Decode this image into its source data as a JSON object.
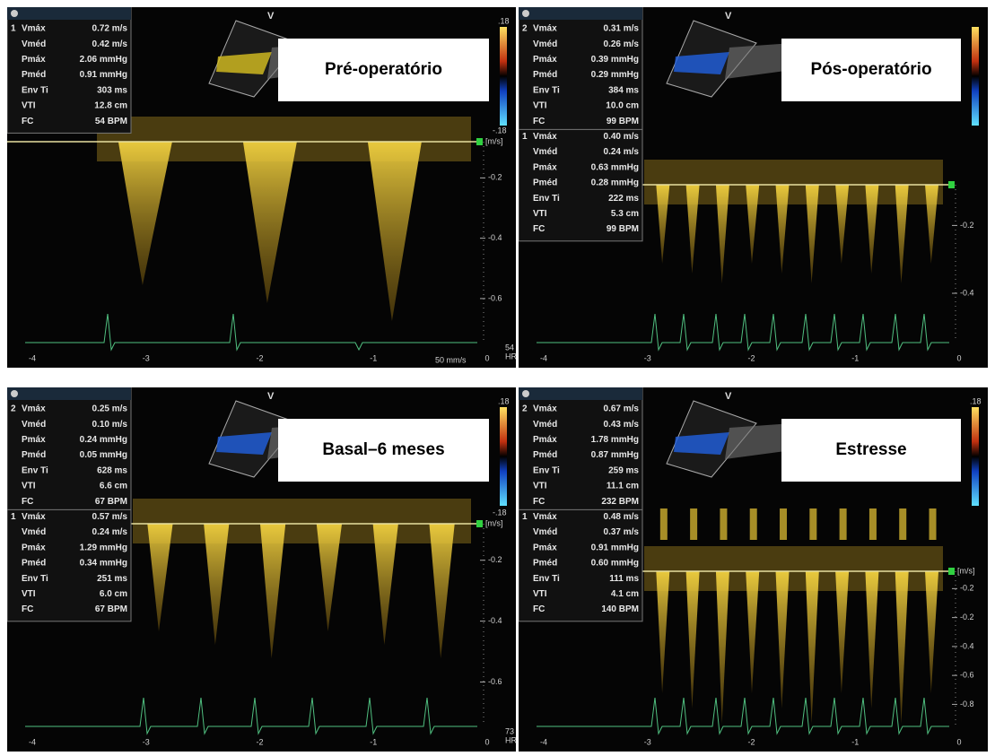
{
  "panels": [
    {
      "title": "Pré-operatório",
      "marker": "V",
      "groups": [
        {
          "number": "1",
          "rows": [
            {
              "label": "Vmáx",
              "value": "0.72 m/s"
            },
            {
              "label": "Vméd",
              "value": "0.42 m/s"
            },
            {
              "label": "Pmáx",
              "value": "2.06 mmHg"
            },
            {
              "label": "Pméd",
              "value": "0.91 mmHg"
            },
            {
              "label": "Env Ti",
              "value": "303 ms"
            },
            {
              "label": "VTI",
              "value": "12.8 cm"
            },
            {
              "label": "FC",
              "value": "54 BPM"
            }
          ]
        }
      ],
      "scale_top": ".18",
      "scale_bottom": "-.18",
      "unit": "[m/s]",
      "y_labels": [
        "-0.2",
        "-0.4",
        "-0.6"
      ],
      "x_labels": [
        "-4",
        "-3",
        "-2",
        "-1",
        "0"
      ],
      "hr": "54",
      "hr_unit": "HR",
      "sweep": "50 mm/s"
    },
    {
      "title": "Pós-operatório",
      "marker": "V",
      "groups": [
        {
          "number": "2",
          "rows": [
            {
              "label": "Vmáx",
              "value": "0.31 m/s"
            },
            {
              "label": "Vméd",
              "value": "0.26 m/s"
            },
            {
              "label": "Pmáx",
              "value": "0.39 mmHg"
            },
            {
              "label": "Pméd",
              "value": "0.29 mmHg"
            },
            {
              "label": "Env Ti",
              "value": "384 ms"
            },
            {
              "label": "VTI",
              "value": "10.0 cm"
            },
            {
              "label": "FC",
              "value": "99 BPM"
            }
          ]
        },
        {
          "number": "1",
          "rows": [
            {
              "label": "Vmáx",
              "value": "0.40 m/s"
            },
            {
              "label": "Vméd",
              "value": "0.24 m/s"
            },
            {
              "label": "Pmáx",
              "value": "0.63 mmHg"
            },
            {
              "label": "Pméd",
              "value": "0.28 mmHg"
            },
            {
              "label": "Env Ti",
              "value": "222 ms"
            },
            {
              "label": "VTI",
              "value": "5.3 cm"
            },
            {
              "label": "FC",
              "value": "99 BPM"
            }
          ]
        }
      ],
      "y_labels": [
        "-0.2",
        "-0.4"
      ],
      "x_labels": [
        "-4",
        "-3",
        "-2",
        "-1",
        "0"
      ]
    },
    {
      "title": "Basal–6 meses",
      "marker": "V",
      "groups": [
        {
          "number": "2",
          "rows": [
            {
              "label": "Vmáx",
              "value": "0.25 m/s"
            },
            {
              "label": "Vméd",
              "value": "0.10 m/s"
            },
            {
              "label": "Pmáx",
              "value": "0.24 mmHg"
            },
            {
              "label": "Pméd",
              "value": "0.05 mmHg"
            },
            {
              "label": "Env Ti",
              "value": "628 ms"
            },
            {
              "label": "VTI",
              "value": "6.6 cm"
            },
            {
              "label": "FC",
              "value": "67 BPM"
            }
          ]
        },
        {
          "number": "1",
          "rows": [
            {
              "label": "Vmáx",
              "value": "0.57 m/s"
            },
            {
              "label": "Vméd",
              "value": "0.24 m/s"
            },
            {
              "label": "Pmáx",
              "value": "1.29 mmHg"
            },
            {
              "label": "Pméd",
              "value": "0.34 mmHg"
            },
            {
              "label": "Env Ti",
              "value": "251 ms"
            },
            {
              "label": "VTI",
              "value": "6.0 cm"
            },
            {
              "label": "FC",
              "value": "67 BPM"
            }
          ]
        }
      ],
      "scale_top": ".18",
      "scale_bottom": "-.18",
      "unit": "[m/s]",
      "y_labels": [
        "-0.2",
        "-0.4",
        "-0.6"
      ],
      "x_labels": [
        "-4",
        "-3",
        "-2",
        "-1",
        "0"
      ],
      "hr": "73",
      "hr_unit": "HR"
    },
    {
      "title": "Estresse",
      "marker": "V",
      "groups": [
        {
          "number": "2",
          "rows": [
            {
              "label": "Vmáx",
              "value": "0.67 m/s"
            },
            {
              "label": "Vméd",
              "value": "0.43 m/s"
            },
            {
              "label": "Pmáx",
              "value": "1.78 mmHg"
            },
            {
              "label": "Pméd",
              "value": "0.87 mmHg"
            },
            {
              "label": "Env Ti",
              "value": "259 ms"
            },
            {
              "label": "VTI",
              "value": "11.1 cm"
            },
            {
              "label": "FC",
              "value": "232 BPM"
            }
          ]
        },
        {
          "number": "1",
          "rows": [
            {
              "label": "Vmáx",
              "value": "0.48 m/s"
            },
            {
              "label": "Vméd",
              "value": "0.37 m/s"
            },
            {
              "label": "Pmáx",
              "value": "0.91 mmHg"
            },
            {
              "label": "Pméd",
              "value": "0.60 mmHg"
            },
            {
              "label": "Env Ti",
              "value": "111 ms"
            },
            {
              "label": "VTI",
              "value": "4.1 cm"
            },
            {
              "label": "FC",
              "value": "140 BPM"
            }
          ]
        }
      ],
      "scale_top": ".18",
      "unit": "[m/s]",
      "y_labels": [
        "-0.2",
        "-0.2",
        "-0.4",
        "-0.6",
        "-0.8"
      ],
      "x_labels": [
        "-4",
        "-3",
        "-2",
        "-1",
        "0"
      ]
    }
  ]
}
